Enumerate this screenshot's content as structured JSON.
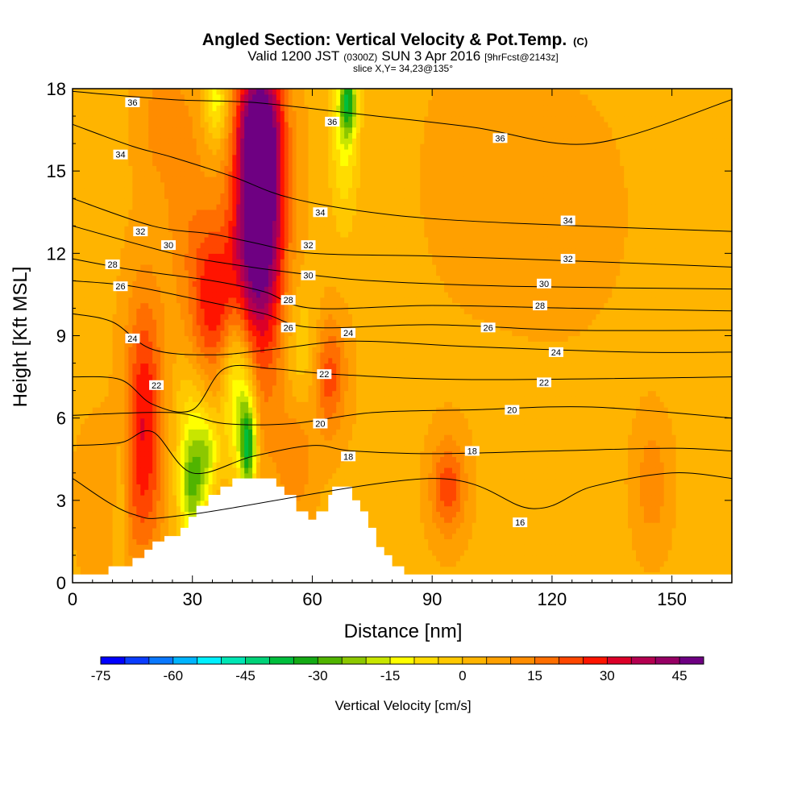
{
  "chart_data": {
    "type": "heatmap",
    "title": {
      "main": "Angled Section: Vertical Velocity & Pot.Temp.",
      "main_unit": "(C)",
      "valid_prefix": "Valid 1200 JST",
      "valid_utc": "(0300Z)",
      "valid_date": "SUN 3 Apr 2016",
      "fcst": "[9hrFcst@2143z]",
      "slice": "slice X,Y= 34,23@135°"
    },
    "xlabel": "Distance [nm]",
    "ylabel": "Height [Kft MSL]",
    "xlim": [
      0,
      165
    ],
    "ylim": [
      0,
      18
    ],
    "xticks": [
      0,
      30,
      60,
      90,
      120,
      150
    ],
    "yticks": [
      0,
      3,
      6,
      9,
      12,
      15,
      18
    ],
    "grid": false,
    "colorbar": {
      "label": "Vertical Velocity [cm/s]",
      "placement": "bottom",
      "bins": [
        -75,
        -70,
        -65,
        -60,
        -55,
        -50,
        -45,
        -40,
        -35,
        -30,
        -25,
        -20,
        -15,
        -10,
        -5,
        0,
        5,
        10,
        15,
        20,
        25,
        30,
        35,
        40,
        45,
        50
      ],
      "colors": [
        "#0000ff",
        "#0a3cff",
        "#0a78ff",
        "#00b4ff",
        "#00f0ff",
        "#00e6b4",
        "#00d278",
        "#00be3c",
        "#14aa14",
        "#50b400",
        "#8cc800",
        "#c8e600",
        "#ffff00",
        "#ffdc00",
        "#ffc800",
        "#ffb400",
        "#ffa000",
        "#ff8c00",
        "#ff6e00",
        "#ff4600",
        "#ff1400",
        "#dc0028",
        "#b40050",
        "#960064",
        "#6e0082"
      ],
      "tick_labels": [
        "-75",
        "-60",
        "-45",
        "-30",
        "-15",
        "0",
        "15",
        "30",
        "45"
      ]
    },
    "vertical_velocity_field_cm_s": {
      "background": 4,
      "features": [
        {
          "x": 47,
          "y": 14.5,
          "sx": 4,
          "sy": 3.2,
          "value": 46
        },
        {
          "x": 46,
          "y": 11.0,
          "sx": 5,
          "sy": 4.0,
          "value": 28
        },
        {
          "x": 47,
          "y": 16.8,
          "sx": 4,
          "sy": 1.5,
          "value": 22
        },
        {
          "x": 35,
          "y": 10.2,
          "sx": 4,
          "sy": 2.2,
          "value": 28
        },
        {
          "x": 28,
          "y": 14.0,
          "sx": 4,
          "sy": 3.0,
          "value": 12
        },
        {
          "x": 22,
          "y": 16.8,
          "sx": 4,
          "sy": 1.5,
          "value": 12
        },
        {
          "x": 18,
          "y": 6.5,
          "sx": 3.3,
          "sy": 3.0,
          "value": 28
        },
        {
          "x": 17,
          "y": 3.0,
          "sx": 4,
          "sy": 2.0,
          "value": 12
        },
        {
          "x": 64,
          "y": 7.6,
          "sx": 3,
          "sy": 1.5,
          "value": 24
        },
        {
          "x": 94,
          "y": 3.5,
          "sx": 3,
          "sy": 1.2,
          "value": 24
        },
        {
          "x": 145,
          "y": 3.6,
          "sx": 3,
          "sy": 1.5,
          "value": 14
        },
        {
          "x": 120,
          "y": 13.5,
          "sx": 16,
          "sy": 4.0,
          "value": 6
        },
        {
          "x": 98,
          "y": 15.0,
          "sx": 8,
          "sy": 3.0,
          "value": 6
        },
        {
          "x": 6,
          "y": 3.0,
          "sx": 4,
          "sy": 2.0,
          "value": 8
        },
        {
          "x": 42,
          "y": 8.0,
          "sx": 4,
          "sy": 1.6,
          "value": -8
        },
        {
          "x": 30,
          "y": 6.5,
          "sx": 3.5,
          "sy": 1.5,
          "value": -5
        },
        {
          "x": 30,
          "y": 3.6,
          "sx": 2.5,
          "sy": 1.5,
          "value": -25
        },
        {
          "x": 34,
          "y": 4.8,
          "sx": 2.0,
          "sy": 1.0,
          "value": -12
        },
        {
          "x": 44,
          "y": 5.0,
          "sx": 1.5,
          "sy": 1.3,
          "value": -36
        },
        {
          "x": 41,
          "y": 6.5,
          "sx": 2.5,
          "sy": 2.0,
          "value": -15
        },
        {
          "x": 58,
          "y": 8.5,
          "sx": 3.5,
          "sy": 1.6,
          "value": -6
        },
        {
          "x": 68,
          "y": 16.3,
          "sx": 2.5,
          "sy": 2.2,
          "value": -12
        },
        {
          "x": 69,
          "y": 17.5,
          "sx": 1.5,
          "sy": 0.8,
          "value": -25
        },
        {
          "x": 36,
          "y": 17.5,
          "sx": 2.0,
          "sy": 1.0,
          "value": -14
        },
        {
          "x": 12,
          "y": 3.0,
          "sx": 1.2,
          "sy": 2.0,
          "value": -5
        },
        {
          "x": 56,
          "y": 4.5,
          "sx": 3.0,
          "sy": 1.5,
          "value": 14
        }
      ]
    },
    "terrain_nm_kft": [
      [
        0,
        0.3
      ],
      [
        9,
        0.3
      ],
      [
        9,
        0.6
      ],
      [
        15,
        0.6
      ],
      [
        15,
        0.9
      ],
      [
        18,
        0.9
      ],
      [
        18,
        1.2
      ],
      [
        20,
        1.2
      ],
      [
        20,
        1.5
      ],
      [
        23,
        1.5
      ],
      [
        23,
        1.7
      ],
      [
        27,
        1.7
      ],
      [
        27,
        2.0
      ],
      [
        29,
        2.0
      ],
      [
        29,
        2.4
      ],
      [
        31,
        2.4
      ],
      [
        31,
        2.8
      ],
      [
        34,
        2.8
      ],
      [
        34,
        3.2
      ],
      [
        37,
        3.2
      ],
      [
        37,
        3.5
      ],
      [
        40,
        3.5
      ],
      [
        40,
        3.8
      ],
      [
        51,
        3.8
      ],
      [
        51,
        3.5
      ],
      [
        53,
        3.5
      ],
      [
        53,
        3.2
      ],
      [
        56,
        3.2
      ],
      [
        56,
        2.6
      ],
      [
        59,
        2.6
      ],
      [
        59,
        2.3
      ],
      [
        61,
        2.3
      ],
      [
        61,
        2.6
      ],
      [
        64,
        2.6
      ],
      [
        64,
        3.2
      ],
      [
        65,
        3.2
      ],
      [
        65,
        3.5
      ],
      [
        70,
        3.5
      ],
      [
        70,
        3.0
      ],
      [
        72,
        3.0
      ],
      [
        72,
        2.6
      ],
      [
        74,
        2.6
      ],
      [
        74,
        2.0
      ],
      [
        76,
        2.0
      ],
      [
        76,
        1.3
      ],
      [
        78,
        1.3
      ],
      [
        78,
        1.0
      ],
      [
        80,
        1.0
      ],
      [
        80,
        0.6
      ],
      [
        83,
        0.6
      ],
      [
        83,
        0.3
      ],
      [
        165,
        0.3
      ]
    ],
    "theta_contours_C": [
      {
        "value": 36,
        "points": [
          [
            0,
            17.9
          ],
          [
            25,
            17.6
          ],
          [
            45,
            17.5
          ],
          [
            70,
            17.1
          ],
          [
            100,
            16.6
          ],
          [
            130,
            16.0
          ],
          [
            165,
            17.6
          ]
        ],
        "labels": [
          [
            15,
            17.5
          ],
          [
            65,
            16.8
          ],
          [
            107,
            16.2
          ]
        ]
      },
      {
        "value": 34,
        "points": [
          [
            0,
            16.7
          ],
          [
            15,
            15.9
          ],
          [
            25,
            15.5
          ],
          [
            40,
            14.8
          ],
          [
            55,
            14.0
          ],
          [
            80,
            13.4
          ],
          [
            110,
            13.1
          ],
          [
            165,
            12.8
          ]
        ],
        "labels": [
          [
            12,
            15.6
          ],
          [
            62,
            13.5
          ],
          [
            124,
            13.2
          ]
        ]
      },
      {
        "value": 32,
        "points": [
          [
            0,
            14.0
          ],
          [
            20,
            13.0
          ],
          [
            35,
            12.7
          ],
          [
            45,
            12.4
          ],
          [
            60,
            12.0
          ],
          [
            90,
            11.9
          ],
          [
            130,
            11.7
          ],
          [
            165,
            11.5
          ]
        ],
        "labels": [
          [
            17,
            12.8
          ],
          [
            59,
            12.3
          ],
          [
            124,
            11.8
          ]
        ]
      },
      {
        "value": 30,
        "points": [
          [
            0,
            13.0
          ],
          [
            25,
            12.0
          ],
          [
            40,
            11.6
          ],
          [
            55,
            11.3
          ],
          [
            75,
            11.0
          ],
          [
            110,
            10.8
          ],
          [
            165,
            10.7
          ]
        ],
        "labels": [
          [
            24,
            12.3
          ],
          [
            59,
            11.2
          ],
          [
            118,
            10.9
          ]
        ]
      },
      {
        "value": 28,
        "points": [
          [
            0,
            11.8
          ],
          [
            15,
            11.4
          ],
          [
            35,
            11.0
          ],
          [
            48,
            10.6
          ],
          [
            60,
            10.0
          ],
          [
            90,
            10.1
          ],
          [
            125,
            10.0
          ],
          [
            165,
            9.9
          ]
        ],
        "labels": [
          [
            10,
            11.6
          ],
          [
            54,
            10.3
          ],
          [
            117,
            10.1
          ]
        ]
      },
      {
        "value": 26,
        "points": [
          [
            0,
            11.0
          ],
          [
            15,
            10.8
          ],
          [
            35,
            10.2
          ],
          [
            48,
            9.8
          ],
          [
            60,
            9.3
          ],
          [
            90,
            9.4
          ],
          [
            125,
            9.2
          ],
          [
            165,
            9.2
          ]
        ],
        "labels": [
          [
            12,
            10.8
          ],
          [
            54,
            9.3
          ],
          [
            104,
            9.3
          ]
        ]
      },
      {
        "value": 24,
        "points": [
          [
            0,
            9.8
          ],
          [
            10,
            9.5
          ],
          [
            20,
            8.5
          ],
          [
            35,
            8.3
          ],
          [
            50,
            8.5
          ],
          [
            70,
            8.8
          ],
          [
            100,
            8.6
          ],
          [
            140,
            8.4
          ],
          [
            165,
            8.4
          ]
        ],
        "labels": [
          [
            15,
            8.9
          ],
          [
            69,
            9.1
          ],
          [
            121,
            8.4
          ]
        ]
      },
      {
        "value": 22,
        "points": [
          [
            0,
            7.5
          ],
          [
            12,
            7.4
          ],
          [
            20,
            6.5
          ],
          [
            30,
            6.3
          ],
          [
            38,
            7.8
          ],
          [
            50,
            7.8
          ],
          [
            65,
            7.6
          ],
          [
            100,
            7.4
          ],
          [
            165,
            7.5
          ]
        ],
        "labels": [
          [
            21,
            7.2
          ],
          [
            63,
            7.6
          ],
          [
            118,
            7.3
          ]
        ]
      },
      {
        "value": 20,
        "points": [
          [
            0,
            6.1
          ],
          [
            25,
            6.2
          ],
          [
            38,
            5.8
          ],
          [
            55,
            5.8
          ],
          [
            75,
            6.2
          ],
          [
            100,
            6.3
          ],
          [
            130,
            6.4
          ],
          [
            165,
            6.0
          ]
        ],
        "labels": [
          [
            62,
            5.8
          ],
          [
            110,
            6.3
          ]
        ]
      },
      {
        "value": 18,
        "points": [
          [
            0,
            5.0
          ],
          [
            12,
            5.1
          ],
          [
            20,
            5.5
          ],
          [
            30,
            4.0
          ],
          [
            45,
            4.6
          ],
          [
            60,
            5.0
          ],
          [
            70,
            4.8
          ],
          [
            90,
            4.7
          ],
          [
            120,
            4.8
          ],
          [
            150,
            4.9
          ],
          [
            165,
            4.8
          ]
        ],
        "labels": [
          [
            69,
            4.6
          ],
          [
            100,
            4.8
          ]
        ]
      },
      {
        "value": 16,
        "points": [
          [
            0,
            3.8
          ],
          [
            15,
            2.5
          ],
          [
            30,
            2.5
          ],
          [
            90,
            3.8
          ],
          [
            115,
            2.7
          ],
          [
            130,
            3.5
          ],
          [
            150,
            4.0
          ],
          [
            165,
            3.8
          ]
        ],
        "labels": [
          [
            112,
            2.2
          ]
        ]
      }
    ]
  }
}
